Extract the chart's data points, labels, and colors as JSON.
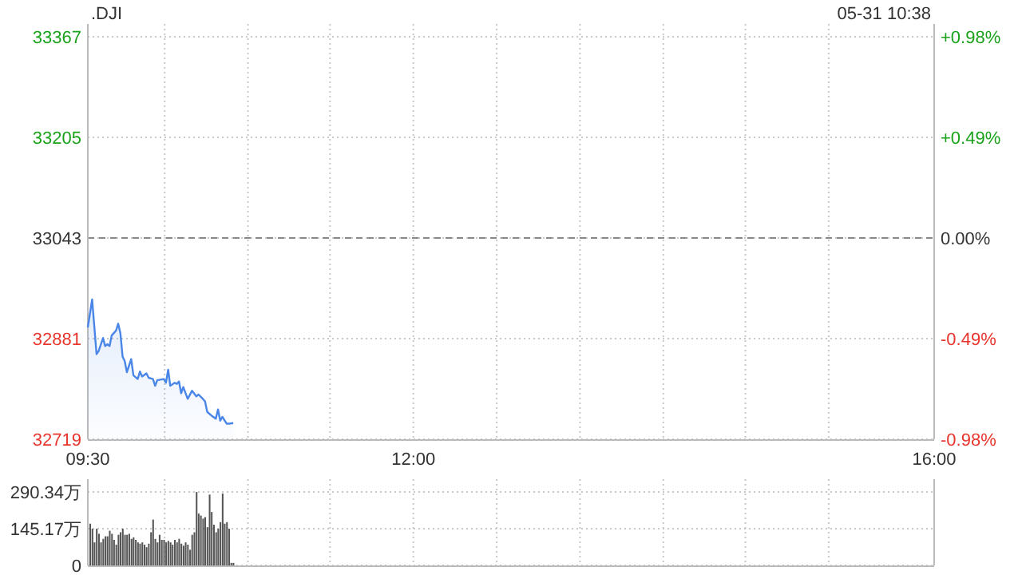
{
  "chart_data": [
    {
      "type": "area",
      "title": ".DJI",
      "annotations": [
        "05-31 10:38"
      ],
      "color": "#4a86e8",
      "grid": true,
      "x": [
        9.5,
        9.533,
        9.567,
        9.583,
        9.617,
        9.633,
        9.65,
        9.667,
        9.683,
        9.717,
        9.733,
        9.75,
        9.767,
        9.783,
        9.8,
        9.833,
        9.85,
        9.883,
        9.9,
        9.917,
        9.95,
        9.967,
        10.0,
        10.017,
        10.033,
        10.083,
        10.1,
        10.117,
        10.133,
        10.167,
        10.183,
        10.2,
        10.217,
        10.233,
        10.267,
        10.3,
        10.333,
        10.35,
        10.383,
        10.4,
        10.417,
        10.45,
        10.483,
        10.5,
        10.517,
        10.533,
        10.567,
        10.583,
        10.617
      ],
      "values": [
        32899,
        32944,
        32856,
        32861,
        32882,
        32869,
        32872,
        32869,
        32886,
        32894,
        32905,
        32890,
        32852,
        32845,
        32827,
        32848,
        32822,
        32816,
        32828,
        32820,
        32825,
        32818,
        32816,
        32805,
        32814,
        32816,
        32810,
        32831,
        32805,
        32810,
        32808,
        32812,
        32793,
        32803,
        32784,
        32797,
        32788,
        32791,
        32784,
        32780,
        32763,
        32757,
        32752,
        32767,
        32749,
        32755,
        32744,
        32744,
        32745
      ],
      "xlim": [
        9.5,
        16
      ],
      "xticks": [
        {
          "value": 9.5,
          "label": "09:30"
        },
        {
          "value": 10.09,
          "label": null
        },
        {
          "value": 10.73,
          "label": null
        },
        {
          "value": 11.36,
          "label": null
        },
        {
          "value": 12,
          "label": "12:00"
        },
        {
          "value": 12.64,
          "label": null
        },
        {
          "value": 13.28,
          "label": null
        },
        {
          "value": 13.92,
          "label": null
        },
        {
          "value": 14.55,
          "label": null
        },
        {
          "value": 15.19,
          "label": null
        },
        {
          "value": 16,
          "label": "16:00"
        }
      ],
      "ylim": [
        32719,
        33367
      ],
      "yticks": [
        32719,
        32881,
        33043,
        33205,
        33367
      ],
      "y2lim": [
        -0.98,
        0.98
      ],
      "y2ticks": [
        {
          "value": -0.98,
          "label": "-0.98%"
        },
        {
          "value": -0.49,
          "label": "-0.49%"
        },
        {
          "value": 0,
          "label": "0.00%"
        },
        {
          "value": 0.49,
          "label": "+0.49%"
        },
        {
          "value": 0.98,
          "label": "+0.98%"
        }
      ],
      "ref_lines": [
        {
          "axis": "y",
          "value": 33043,
          "line_style": "dashed",
          "color": "#888888"
        }
      ]
    },
    {
      "type": "bar",
      "color": "#555555",
      "grid": true,
      "tick_labels": "y",
      "x": [
        9.5,
        9.517,
        9.533,
        9.55,
        9.567,
        9.583,
        9.6,
        9.617,
        9.633,
        9.65,
        9.667,
        9.683,
        9.7,
        9.717,
        9.733,
        9.75,
        9.767,
        9.783,
        9.8,
        9.817,
        9.833,
        9.85,
        9.867,
        9.883,
        9.9,
        9.917,
        9.933,
        9.95,
        9.967,
        9.983,
        10.0,
        10.017,
        10.033,
        10.05,
        10.067,
        10.083,
        10.1,
        10.117,
        10.133,
        10.15,
        10.167,
        10.183,
        10.2,
        10.217,
        10.233,
        10.25,
        10.267,
        10.283,
        10.3,
        10.317,
        10.333,
        10.35,
        10.367,
        10.383,
        10.4,
        10.417,
        10.433,
        10.45,
        10.467,
        10.483,
        10.5,
        10.517,
        10.533,
        10.55,
        10.567,
        10.583,
        10.6
      ],
      "values": [
        165,
        145,
        91,
        145,
        125,
        91,
        105,
        115,
        115,
        137,
        125,
        101,
        82,
        121,
        131,
        145,
        121,
        121,
        125,
        105,
        111,
        101,
        91,
        86,
        91,
        82,
        72,
        86,
        131,
        181,
        105,
        91,
        121,
        101,
        101,
        91,
        97,
        91,
        82,
        101,
        91,
        105,
        86,
        78,
        91,
        82,
        62,
        121,
        131,
        290,
        205,
        197,
        185,
        191,
        151,
        280,
        211,
        161,
        131,
        145,
        171,
        284,
        165,
        171,
        145,
        10,
        10
      ],
      "xlim": [
        9.5,
        16
      ],
      "xticks": [
        {
          "value": 10.09,
          "label": null
        },
        {
          "value": 10.73,
          "label": null
        },
        {
          "value": 11.36,
          "label": null
        },
        {
          "value": 12,
          "label": null
        },
        {
          "value": 12.64,
          "label": null
        },
        {
          "value": 13.28,
          "label": null
        },
        {
          "value": 13.92,
          "label": null
        },
        {
          "value": 14.55,
          "label": null
        },
        {
          "value": 15.19,
          "label": null
        }
      ],
      "ylim": [
        0,
        290.34
      ],
      "yticks": [
        {
          "value": 0,
          "label": "0"
        },
        {
          "value": 145.17,
          "label": "145.17万"
        },
        {
          "value": 290.34,
          "label": "290.34万"
        }
      ]
    }
  ]
}
